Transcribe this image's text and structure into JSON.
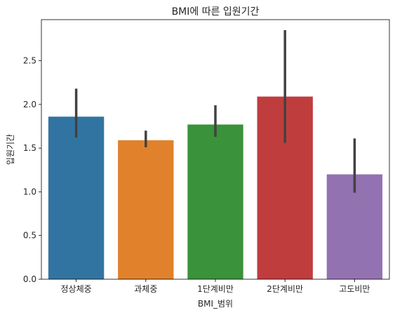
{
  "chart_data": {
    "type": "bar",
    "title": "BMI에 따른 입원기간",
    "xlabel": "BMI_범위",
    "ylabel": "입원기간",
    "categories": [
      "정상체중",
      "과체중",
      "1단계비만",
      "2단계비만",
      "고도비만"
    ],
    "values": [
      1.86,
      1.59,
      1.77,
      2.09,
      1.2
    ],
    "ci_low": [
      1.62,
      1.51,
      1.63,
      1.56,
      0.99
    ],
    "ci_high": [
      2.18,
      1.7,
      1.99,
      2.85,
      1.61
    ],
    "colors": [
      "#3274a1",
      "#e1812c",
      "#3a923a",
      "#c03d3e",
      "#9372b2"
    ],
    "errorbar_color": "#424242",
    "ylim": [
      0,
      2.97
    ],
    "yticks": [
      "0.0",
      "0.5",
      "1.0",
      "1.5",
      "2.0",
      "2.5"
    ],
    "grid": false
  }
}
